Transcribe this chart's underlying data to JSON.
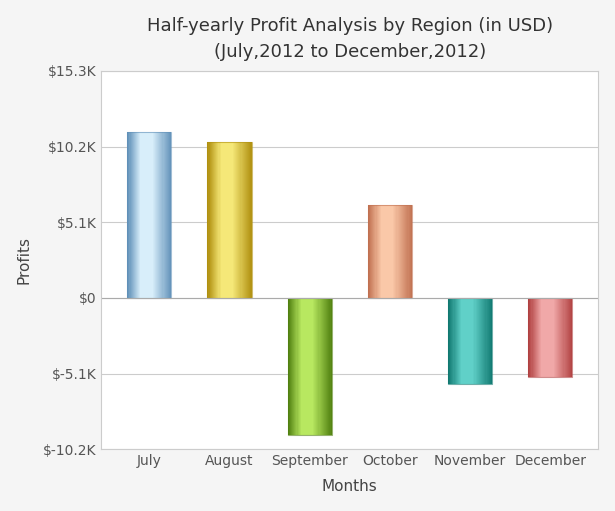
{
  "title": "Half-yearly Profit Analysis by Region (in USD)",
  "subtitle": "(July,2012 to December,2012)",
  "xlabel": "Months",
  "ylabel": "Profits",
  "categories": [
    "July",
    "August",
    "September",
    "October",
    "November",
    "December"
  ],
  "values": [
    11200,
    10500,
    -9200,
    6300,
    -5800,
    -5300
  ],
  "ylim": [
    -10200,
    15300
  ],
  "yticks": [
    -10200,
    -5100,
    0,
    5100,
    10200,
    15300
  ],
  "ytick_labels": [
    "$-10.2K",
    "$-5.1K",
    "$0",
    "$5.1K",
    "$10.2K",
    "$15.3K"
  ],
  "bar_colors_main": [
    "#a8d8f0",
    "#e8c830",
    "#8dc820",
    "#f0a070",
    "#20a8a0",
    "#e07070"
  ],
  "bar_colors_light": [
    "#d8eefa",
    "#f5e878",
    "#b8e860",
    "#fac8a8",
    "#60d0c8",
    "#f0a8a8"
  ],
  "bar_colors_dark": [
    "#6090b8",
    "#b09010",
    "#508010",
    "#c07050",
    "#107870",
    "#b04040"
  ],
  "background_color": "#f5f5f5",
  "plot_bg_color": "#ffffff",
  "title_fontsize": 13,
  "subtitle_fontsize": 11,
  "axis_label_fontsize": 11,
  "tick_fontsize": 10,
  "bar_width": 0.55
}
